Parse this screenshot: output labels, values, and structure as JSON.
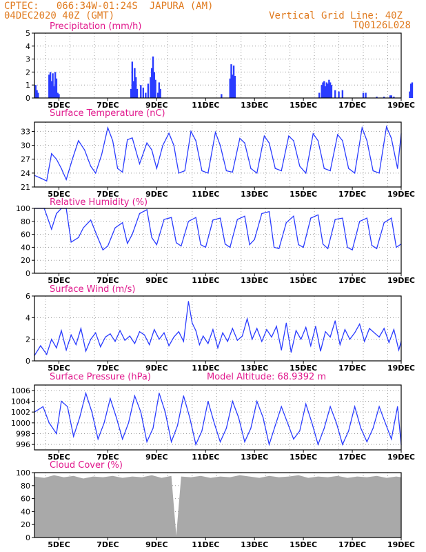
{
  "header": {
    "left_line1": "CPTEC:   066:34W-01:24S  JAPURA (AM)",
    "left_line2": "04DEC2020 40Z (GMT)",
    "right_line1": "Vertical Grid Line: 40Z",
    "right_line2": "TQ0126L028"
  },
  "x_ticks": [
    "5DEC",
    "7DEC",
    "9DEC",
    "11DEC",
    "13DEC",
    "15DEC",
    "17DEC",
    "19DEC"
  ],
  "colors": {
    "header": "#e07b20",
    "title": "#e0188c",
    "line": "#2a3cff",
    "cloud": "#a9a9a9",
    "grid": "#9a9a9a"
  },
  "chart_data": [
    {
      "type": "bar",
      "title": "Precipitation (mm/h)",
      "ylim": [
        0,
        5
      ],
      "yticks": [
        0,
        1,
        2,
        3,
        4,
        5
      ],
      "bars": [
        [
          0.05,
          1.0
        ],
        [
          0.1,
          0.6
        ],
        [
          0.15,
          0.4
        ],
        [
          0.6,
          1.8
        ],
        [
          0.65,
          2.0
        ],
        [
          0.7,
          1.3
        ],
        [
          0.75,
          1.9
        ],
        [
          0.8,
          0.9
        ],
        [
          0.85,
          2.0
        ],
        [
          0.9,
          1.5
        ],
        [
          0.95,
          0.4
        ],
        [
          1.0,
          0.3
        ],
        [
          3.95,
          0.7
        ],
        [
          4.0,
          2.8
        ],
        [
          4.05,
          1.3
        ],
        [
          4.1,
          2.3
        ],
        [
          4.15,
          1.6
        ],
        [
          4.2,
          0.7
        ],
        [
          4.35,
          1.0
        ],
        [
          4.45,
          0.8
        ],
        [
          4.55,
          0.4
        ],
        [
          4.65,
          1.1
        ],
        [
          4.75,
          1.6
        ],
        [
          4.8,
          2.3
        ],
        [
          4.85,
          3.2
        ],
        [
          4.9,
          2.0
        ],
        [
          4.95,
          1.4
        ],
        [
          5.05,
          0.4
        ],
        [
          5.1,
          1.2
        ],
        [
          5.15,
          0.7
        ],
        [
          7.65,
          0.3
        ],
        [
          8.0,
          1.5
        ],
        [
          8.05,
          2.6
        ],
        [
          8.1,
          1.8
        ],
        [
          8.15,
          2.5
        ],
        [
          8.2,
          1.7
        ],
        [
          11.65,
          0.4
        ],
        [
          11.75,
          1.0
        ],
        [
          11.8,
          1.2
        ],
        [
          11.85,
          1.3
        ],
        [
          11.9,
          0.9
        ],
        [
          11.95,
          1.2
        ],
        [
          12.0,
          1.1
        ],
        [
          12.05,
          1.4
        ],
        [
          12.1,
          1.2
        ],
        [
          12.15,
          1.0
        ],
        [
          12.3,
          0.6
        ],
        [
          12.45,
          0.5
        ],
        [
          12.6,
          0.6
        ],
        [
          13.45,
          0.4
        ],
        [
          13.55,
          0.4
        ],
        [
          14.0,
          0.1
        ],
        [
          14.3,
          0.1
        ],
        [
          14.55,
          0.2
        ],
        [
          14.6,
          0.2
        ],
        [
          14.7,
          0.1
        ],
        [
          15.35,
          0.5
        ],
        [
          15.4,
          1.1
        ],
        [
          15.45,
          1.2
        ]
      ]
    },
    {
      "type": "line",
      "title": "Surface Temperature (nC)",
      "ylim": [
        21,
        35
      ],
      "yticks": [
        21,
        24,
        27,
        30,
        33
      ],
      "x": [
        0,
        0.3,
        0.5,
        0.7,
        0.9,
        1.1,
        1.3,
        1.55,
        1.8,
        2.05,
        2.3,
        2.5,
        2.75,
        3.0,
        3.2,
        3.4,
        3.6,
        3.8,
        4.0,
        4.3,
        4.6,
        4.8,
        5.0,
        5.25,
        5.5,
        5.7,
        5.9,
        6.15,
        6.4,
        6.6,
        6.85,
        7.1,
        7.4,
        7.6,
        7.85,
        8.1,
        8.4,
        8.6,
        8.85,
        9.1,
        9.4,
        9.6,
        9.85,
        10.1,
        10.4,
        10.6,
        10.85,
        11.1,
        11.4,
        11.6,
        11.85,
        12.1,
        12.4,
        12.6,
        12.85,
        13.1,
        13.4,
        13.6,
        13.85,
        14.1,
        14.4,
        14.6,
        14.85,
        15.0
      ],
      "values": [
        23.5,
        22.8,
        22.3,
        28.2,
        27.0,
        25.0,
        22.6,
        27.0,
        31.0,
        29.0,
        25.5,
        24.0,
        28.0,
        33.8,
        31.0,
        25.0,
        24.2,
        31.2,
        31.6,
        26.0,
        30.5,
        29.0,
        25.0,
        30.0,
        32.6,
        30.0,
        24.0,
        24.5,
        33.0,
        31.0,
        24.5,
        24.0,
        32.8,
        30.0,
        24.5,
        24.2,
        31.5,
        30.5,
        25.0,
        24.0,
        32.0,
        30.5,
        25.0,
        24.5,
        32.0,
        31.0,
        25.5,
        24.0,
        32.5,
        31.0,
        25.0,
        24.5,
        32.3,
        31.0,
        25.0,
        24.0,
        33.8,
        31.0,
        24.5,
        24.0,
        34.0,
        31.5,
        25.0,
        32.5
      ]
    },
    {
      "type": "line",
      "title": "Relative Humidity (%)",
      "ylim": [
        0,
        100
      ],
      "yticks": [
        0,
        20,
        40,
        60,
        80,
        100
      ],
      "x": [
        0,
        0.4,
        0.7,
        0.9,
        1.1,
        1.3,
        1.5,
        1.8,
        2.0,
        2.3,
        2.6,
        2.8,
        3.0,
        3.3,
        3.6,
        3.8,
        4.0,
        4.3,
        4.6,
        4.8,
        5.0,
        5.3,
        5.6,
        5.8,
        6.0,
        6.3,
        6.6,
        6.8,
        7.0,
        7.3,
        7.6,
        7.8,
        8.0,
        8.3,
        8.6,
        8.8,
        9.0,
        9.3,
        9.6,
        9.8,
        10.0,
        10.3,
        10.6,
        10.8,
        11.0,
        11.3,
        11.6,
        11.8,
        12.0,
        12.3,
        12.6,
        12.8,
        13.0,
        13.3,
        13.6,
        13.8,
        14.0,
        14.3,
        14.6,
        14.8,
        15.0
      ],
      "values": [
        100,
        100,
        68,
        92,
        100,
        100,
        48,
        55,
        70,
        82,
        54,
        36,
        42,
        70,
        78,
        46,
        60,
        92,
        98,
        55,
        44,
        83,
        86,
        47,
        42,
        80,
        86,
        44,
        40,
        82,
        85,
        45,
        40,
        83,
        88,
        44,
        52,
        92,
        95,
        40,
        38,
        78,
        88,
        44,
        40,
        85,
        90,
        45,
        38,
        83,
        85,
        40,
        36,
        80,
        85,
        43,
        38,
        78,
        85,
        40,
        45
      ]
    },
    {
      "type": "line",
      "title": "Surface Wind (m/s)",
      "ylim": [
        0,
        6
      ],
      "yticks": [
        0,
        2,
        4,
        6
      ],
      "x": [
        0,
        0.25,
        0.5,
        0.7,
        0.9,
        1.1,
        1.3,
        1.5,
        1.7,
        1.9,
        2.1,
        2.3,
        2.5,
        2.7,
        2.9,
        3.1,
        3.3,
        3.5,
        3.7,
        3.9,
        4.1,
        4.3,
        4.5,
        4.7,
        4.9,
        5.1,
        5.3,
        5.5,
        5.7,
        5.9,
        6.1,
        6.3,
        6.45,
        6.6,
        6.75,
        6.9,
        7.1,
        7.3,
        7.5,
        7.7,
        7.9,
        8.1,
        8.3,
        8.5,
        8.7,
        8.9,
        9.1,
        9.3,
        9.5,
        9.7,
        9.9,
        10.1,
        10.3,
        10.5,
        10.7,
        10.9,
        11.1,
        11.3,
        11.5,
        11.7,
        11.9,
        12.1,
        12.3,
        12.5,
        12.7,
        12.9,
        13.1,
        13.3,
        13.5,
        13.7,
        13.9,
        14.1,
        14.3,
        14.5,
        14.7,
        14.9,
        15.0
      ],
      "values": [
        0.5,
        1.4,
        0.6,
        2.0,
        1.2,
        2.8,
        1.0,
        2.4,
        1.5,
        3.0,
        0.9,
        2.0,
        2.6,
        1.3,
        2.2,
        2.5,
        1.8,
        2.8,
        1.9,
        2.3,
        1.6,
        2.7,
        2.4,
        1.5,
        2.9,
        2.0,
        2.6,
        1.4,
        2.2,
        2.7,
        1.8,
        5.5,
        3.5,
        2.8,
        1.5,
        2.3,
        1.6,
        2.9,
        1.2,
        2.6,
        1.8,
        3.0,
        1.9,
        2.3,
        3.9,
        2.0,
        3.0,
        1.8,
        2.9,
        2.2,
        3.2,
        1.0,
        3.5,
        0.8,
        2.8,
        2.0,
        3.1,
        1.4,
        3.2,
        0.9,
        2.7,
        2.2,
        3.7,
        1.5,
        2.9,
        2.0,
        2.6,
        3.4,
        1.8,
        3.0,
        2.6,
        2.2,
        3.0,
        1.7,
        2.9,
        1.0,
        1.8
      ]
    },
    {
      "type": "line",
      "title": "Surface Pressure (hPa)",
      "annotation": "Model Altitude: 68.9392 m",
      "ylim": [
        995,
        1007
      ],
      "yticks": [
        996,
        998,
        1000,
        1002,
        1004,
        1006
      ],
      "x": [
        0,
        0.35,
        0.6,
        0.9,
        1.1,
        1.35,
        1.6,
        1.85,
        2.1,
        2.35,
        2.6,
        2.85,
        3.1,
        3.35,
        3.6,
        3.85,
        4.1,
        4.35,
        4.6,
        4.85,
        5.1,
        5.35,
        5.6,
        5.85,
        6.1,
        6.35,
        6.6,
        6.85,
        7.1,
        7.35,
        7.6,
        7.85,
        8.1,
        8.35,
        8.6,
        8.85,
        9.1,
        9.35,
        9.6,
        9.85,
        10.1,
        10.35,
        10.6,
        10.85,
        11.1,
        11.35,
        11.6,
        11.85,
        12.1,
        12.35,
        12.6,
        12.85,
        13.1,
        13.35,
        13.6,
        13.85,
        14.1,
        14.35,
        14.6,
        14.85,
        15.0
      ],
      "values": [
        1002,
        1003,
        1000,
        998,
        1004,
        1003,
        997.5,
        1001,
        1005.5,
        1002,
        997,
        1000,
        1004.5,
        1001,
        997,
        1000,
        1005,
        1002,
        996.5,
        999,
        1005.5,
        1002,
        996.5,
        999.5,
        1005,
        1001,
        996,
        998.5,
        1004,
        1000,
        996.5,
        999,
        1004,
        1001,
        996.5,
        999,
        1004,
        1001,
        996,
        999.5,
        1003,
        1000,
        997,
        998.5,
        1003.5,
        1000,
        996,
        999,
        1003,
        1000,
        996,
        998.5,
        1003,
        999,
        996.5,
        999,
        1003,
        1000,
        997,
        1003,
        996
      ]
    },
    {
      "type": "bar",
      "title": "Cloud Cover (%)",
      "ylim": [
        0,
        100
      ],
      "yticks": [
        0,
        20,
        40,
        60,
        80,
        100
      ],
      "x": [
        0,
        0.4,
        0.8,
        1.2,
        1.6,
        2.0,
        2.4,
        2.8,
        3.2,
        3.6,
        4.0,
        4.4,
        4.8,
        5.2,
        5.6,
        5.8,
        6.0,
        6.4,
        6.8,
        7.2,
        7.6,
        8.0,
        8.4,
        8.8,
        9.2,
        9.6,
        10.0,
        10.4,
        10.8,
        11.2,
        11.6,
        12.0,
        12.4,
        12.8,
        13.2,
        13.6,
        14.0,
        14.4,
        14.8,
        15.0
      ],
      "values": [
        94,
        92,
        96,
        93,
        95,
        91,
        94,
        93,
        95,
        92,
        94,
        93,
        96,
        92,
        95,
        3,
        94,
        93,
        95,
        92,
        94,
        93,
        96,
        94,
        92,
        95,
        93,
        94,
        96,
        92,
        94,
        93,
        95,
        92,
        94,
        93,
        95,
        92,
        94,
        93
      ]
    }
  ]
}
